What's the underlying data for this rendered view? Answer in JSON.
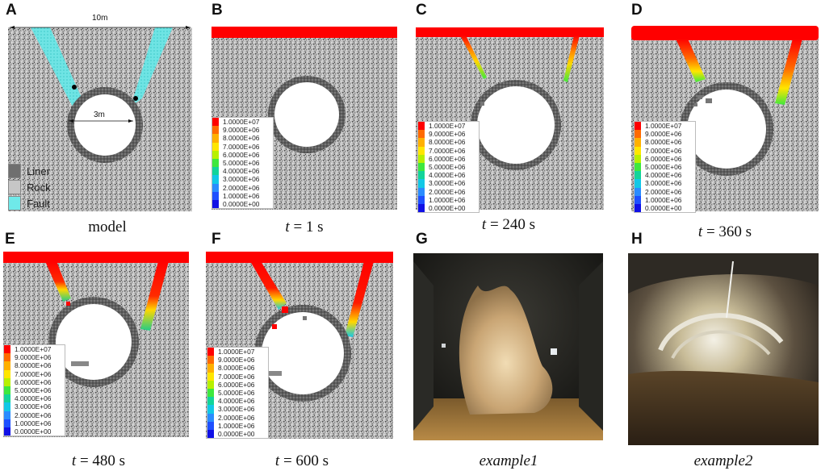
{
  "panels": [
    {
      "id": "A",
      "caption": "model"
    },
    {
      "id": "B",
      "caption_t": "t",
      "caption_rest": " = 1 s"
    },
    {
      "id": "C",
      "caption_t": "t",
      "caption_rest": " = 240 s"
    },
    {
      "id": "D",
      "caption_t": "t",
      "caption_rest": " = 360 s"
    },
    {
      "id": "E",
      "caption_t": "t",
      "caption_rest": " = 480 s"
    },
    {
      "id": "F",
      "caption_t": "t",
      "caption_rest": " = 600 s"
    },
    {
      "id": "G",
      "caption": "example1"
    },
    {
      "id": "H",
      "caption": "example2"
    }
  ],
  "model": {
    "width_label": "10m",
    "diameter_label": "3m",
    "legend": [
      {
        "label": "Liner",
        "color": "#6f6f6f"
      },
      {
        "label": "Rock",
        "color": "#c6c6c6"
      },
      {
        "label": "Fault",
        "color": "#6fe9e9"
      }
    ]
  },
  "pressure_legend": {
    "values": [
      "1.0000E+07",
      "9.0000E+06",
      "8.0000E+06",
      "7.0000E+06",
      "6.0000E+06",
      "5.0000E+06",
      "4.0000E+06",
      "3.0000E+06",
      "2.0000E+06",
      "1.0000E+06",
      "0.0000E+00"
    ],
    "colors": [
      "#ff0000",
      "#ff6a00",
      "#ffb000",
      "#ffe600",
      "#b8f000",
      "#3ee83e",
      "#12d49a",
      "#12c8e6",
      "#2a8cff",
      "#1e50ff",
      "#1010e6"
    ]
  }
}
